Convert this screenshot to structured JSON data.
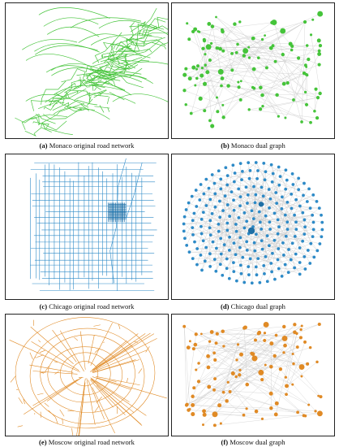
{
  "colors": {
    "monaco": "#45c43a",
    "monaco_dark": "#2a9a20",
    "chicago": "#2d8ac7",
    "chicago_dark": "#1f6fa5",
    "moscow": "#e08a25",
    "moscow_dark": "#c06a10",
    "edge_gray": "#c8c8c8"
  },
  "panels": [
    {
      "letter": "(a)",
      "caption": "Monaco original road network",
      "kind": "road",
      "city": "monaco"
    },
    {
      "letter": "(b)",
      "caption": "Monaco dual graph",
      "kind": "dual",
      "city": "monaco"
    },
    {
      "letter": "(c)",
      "caption": "Chicago original road network",
      "kind": "road",
      "city": "chicago"
    },
    {
      "letter": "(d)",
      "caption": "Chicago dual graph",
      "kind": "dual",
      "city": "chicago"
    },
    {
      "letter": "(e)",
      "caption": "Moscow original road network",
      "kind": "road",
      "city": "moscow"
    },
    {
      "letter": "(f)",
      "caption": "Moscow dual graph",
      "kind": "dual",
      "city": "moscow"
    }
  ]
}
